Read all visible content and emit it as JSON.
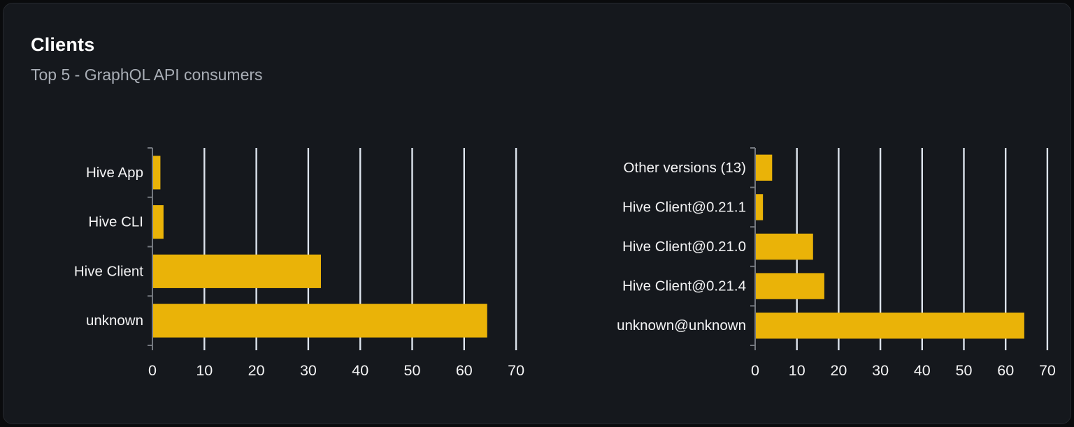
{
  "card": {
    "title": "Clients",
    "subtitle": "Top 5 - GraphQL API consumers"
  },
  "colors": {
    "bar": "#eab308",
    "grid": "#dce3ec",
    "axis": "#74787f",
    "category_label": "#f4f4f5",
    "tick_label": "#f4f4f5",
    "card_bg": "#15181d",
    "card_border": "#25282d",
    "page_bg": "#0a0b0d",
    "title": "#ffffff",
    "subtitle": "#a9aeb6"
  },
  "chart_data": [
    {
      "type": "bar",
      "orientation": "horizontal",
      "title": "",
      "xlabel": "",
      "ylabel": "",
      "categories": [
        "Hive App",
        "Hive CLI",
        "Hive Client",
        "unknown"
      ],
      "values": [
        1.4,
        2,
        32.3,
        64.3
      ],
      "xlim": [
        0,
        70
      ],
      "xticks": [
        0,
        10,
        20,
        30,
        40,
        50,
        60,
        70
      ],
      "grid": true,
      "legend": false
    },
    {
      "type": "bar",
      "orientation": "horizontal",
      "title": "",
      "xlabel": "",
      "ylabel": "",
      "categories": [
        "Other versions (13)",
        "Hive Client@0.21.1",
        "Hive Client@0.21.0",
        "Hive Client@0.21.4",
        "unknown@unknown"
      ],
      "values": [
        3.9,
        1.7,
        13.7,
        16.4,
        64.3
      ],
      "xlim": [
        0,
        70
      ],
      "xticks": [
        0,
        10,
        20,
        30,
        40,
        50,
        60,
        70
      ],
      "grid": true,
      "legend": false
    }
  ]
}
